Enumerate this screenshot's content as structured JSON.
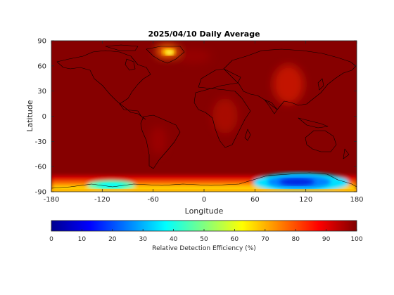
{
  "chart_data": {
    "type": "heatmap",
    "title": "2025/04/10 Daily Average",
    "xlabel": "Longitude",
    "ylabel": "Latitude",
    "xlim": [
      -180,
      180
    ],
    "ylim": [
      -90,
      90
    ],
    "xticks": [
      -180,
      -120,
      -60,
      0,
      60,
      120,
      180
    ],
    "yticks": [
      -90,
      -60,
      -30,
      0,
      30,
      60,
      90
    ],
    "colorbar": {
      "label": "Relative Detection Efficiency (%)",
      "range": [
        0,
        100
      ],
      "ticks": [
        0,
        10,
        20,
        30,
        40,
        50,
        60,
        70,
        80,
        90,
        100
      ],
      "colormap": "jet"
    },
    "dominant_value": 100,
    "features": [
      {
        "region": "Greenland",
        "lon": -35,
        "lat": 75,
        "value": 80
      },
      {
        "region": "East Asia / Himalaya",
        "lon": 95,
        "lat": 35,
        "value": 90
      },
      {
        "region": "Central Africa",
        "lon": 25,
        "lat": -5,
        "value": 92
      },
      {
        "region": "West Antarctica",
        "lon": -110,
        "lat": -80,
        "value": 40
      },
      {
        "region": "East Antarctica",
        "lon": 110,
        "lat": -80,
        "value": 20
      },
      {
        "region": "Antarctic coast",
        "lon": 0,
        "lat": -85,
        "value": 70
      }
    ]
  }
}
